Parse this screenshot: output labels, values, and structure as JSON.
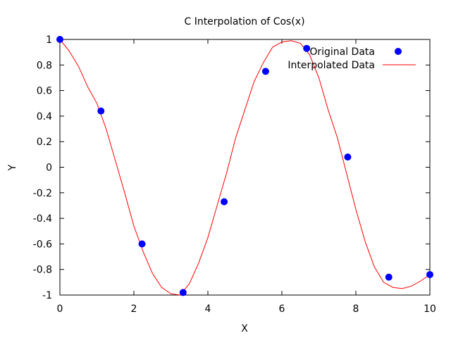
{
  "chart_data": {
    "type": "line",
    "title": "C Interpolation of Cos(x)",
    "xlabel": "X",
    "ylabel": "Y",
    "xlim": [
      0,
      10
    ],
    "ylim": [
      -1,
      1
    ],
    "x_ticks": [
      0,
      2,
      4,
      6,
      8,
      10
    ],
    "y_ticks": [
      -1,
      -0.8,
      -0.6,
      -0.4,
      -0.2,
      0,
      0.2,
      0.4,
      0.6,
      0.8,
      1
    ],
    "grid": false,
    "legend_position": "top-right",
    "series": [
      {
        "name": "Original Data",
        "style": "points",
        "color": "#0000ff",
        "x": [
          0,
          1.11,
          2.22,
          3.33,
          4.44,
          5.56,
          6.67,
          7.78,
          8.89,
          10
        ],
        "y": [
          1,
          0.44,
          -0.6,
          -0.98,
          -0.27,
          0.75,
          0.93,
          0.08,
          -0.86,
          -0.84
        ]
      },
      {
        "name": "Interpolated Data",
        "style": "line",
        "color": "#ff0000",
        "x": [
          0,
          0.25,
          0.5,
          0.75,
          1.0,
          1.25,
          1.5,
          1.75,
          2.0,
          2.25,
          2.5,
          2.75,
          3.0,
          3.25,
          3.5,
          3.75,
          4.0,
          4.25,
          4.5,
          4.75,
          5.0,
          5.25,
          5.5,
          5.75,
          6.0,
          6.25,
          6.5,
          6.75,
          7.0,
          7.25,
          7.5,
          7.75,
          8.0,
          8.25,
          8.5,
          8.75,
          9.0,
          9.25,
          9.5,
          9.75,
          10.0
        ],
        "y": [
          1.0,
          0.91,
          0.79,
          0.63,
          0.5,
          0.3,
          0.05,
          -0.2,
          -0.46,
          -0.66,
          -0.83,
          -0.94,
          -0.99,
          -1.0,
          -0.91,
          -0.75,
          -0.55,
          -0.3,
          -0.05,
          0.23,
          0.45,
          0.67,
          0.82,
          0.94,
          0.98,
          0.99,
          0.97,
          0.88,
          0.7,
          0.45,
          0.23,
          -0.05,
          -0.33,
          -0.58,
          -0.78,
          -0.9,
          -0.94,
          -0.95,
          -0.93,
          -0.89,
          -0.84
        ]
      }
    ]
  }
}
